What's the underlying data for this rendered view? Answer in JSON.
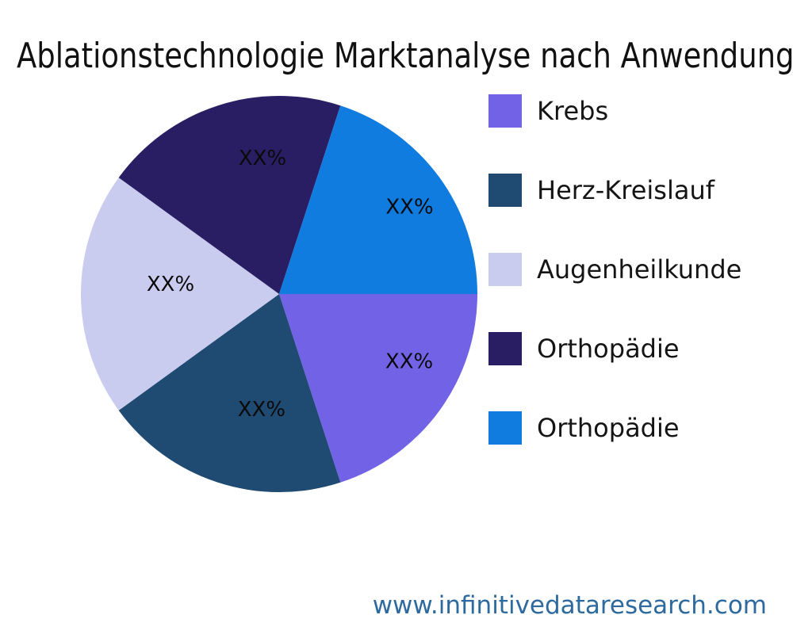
{
  "title": "Ablationstechnologie Marktanalyse nach Anwendung",
  "footer": {
    "url_text": "www.infinitivedataresearch.com",
    "color": "#2e6a9e"
  },
  "chart_data": {
    "type": "pie",
    "title": "Ablationstechnologie Marktanalyse nach Anwendung",
    "start_angle_deg": 0,
    "direction": "clockwise",
    "legend_position": "right",
    "slices": [
      {
        "label": "Krebs",
        "value": 20,
        "pct_label": "XX%",
        "color": "#7263e6"
      },
      {
        "label": "Herz-Kreislauf",
        "value": 20,
        "pct_label": "XX%",
        "color": "#1f4a72"
      },
      {
        "label": "Augenheilkunde",
        "value": 20,
        "pct_label": "XX%",
        "color": "#c9ccee"
      },
      {
        "label": "Orthopädie",
        "value": 20,
        "pct_label": "XX%",
        "color": "#291e63"
      },
      {
        "label": "Orthopädie",
        "value": 20,
        "pct_label": "XX%",
        "color": "#117cdf"
      }
    ]
  }
}
